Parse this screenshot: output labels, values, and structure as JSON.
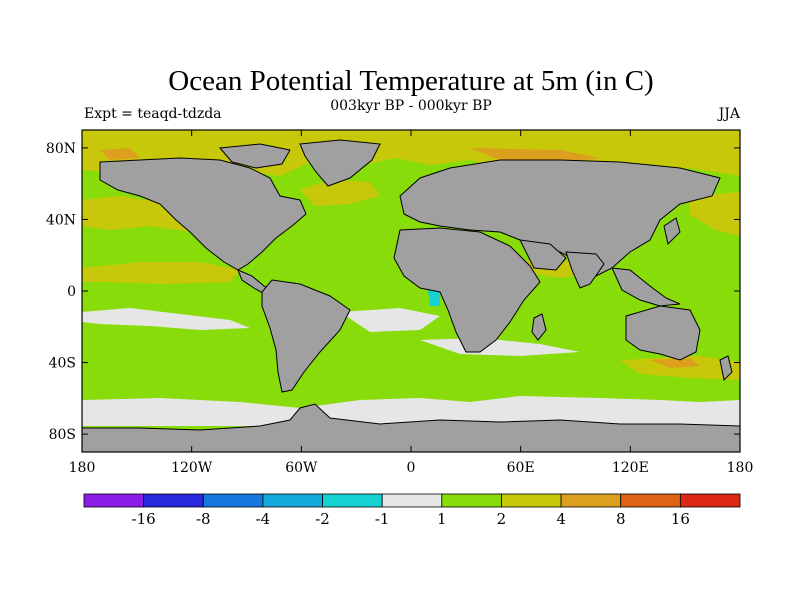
{
  "chart_data": {
    "type": "heatmap",
    "title": "Ocean Potential Temperature at 5m (in C)",
    "subtitle_center": "003kyr BP - 000kyr BP",
    "subtitle_left": "Expt = teaqd-tdzda",
    "subtitle_right": "JJA",
    "xaxis": {
      "range": [
        -180,
        180
      ],
      "ticks": [
        -180,
        -120,
        -60,
        0,
        60,
        120,
        180
      ],
      "tick_labels": [
        "180",
        "120W",
        "60W",
        "0",
        "60E",
        "120E",
        "180"
      ]
    },
    "yaxis": {
      "range": [
        -90,
        90
      ],
      "ticks": [
        80,
        40,
        0,
        -40,
        -80
      ],
      "tick_labels": [
        "80N",
        "40N",
        "0",
        "40S",
        "80S"
      ]
    },
    "colorbar": {
      "labels": [
        "-16",
        "-8",
        "-4",
        "-2",
        "-1",
        "1",
        "2",
        "4",
        "8",
        "16"
      ],
      "colors": [
        "#8a1ee6",
        "#2828dc",
        "#1478dc",
        "#14aadc",
        "#14d2d2",
        "#e6e6e6",
        "#87dc0a",
        "#c8c80a",
        "#dca01e",
        "#dc6414",
        "#dc2814"
      ]
    },
    "land_color": "#a0a0a0",
    "dominant_ocean_class": "1 to 2"
  }
}
